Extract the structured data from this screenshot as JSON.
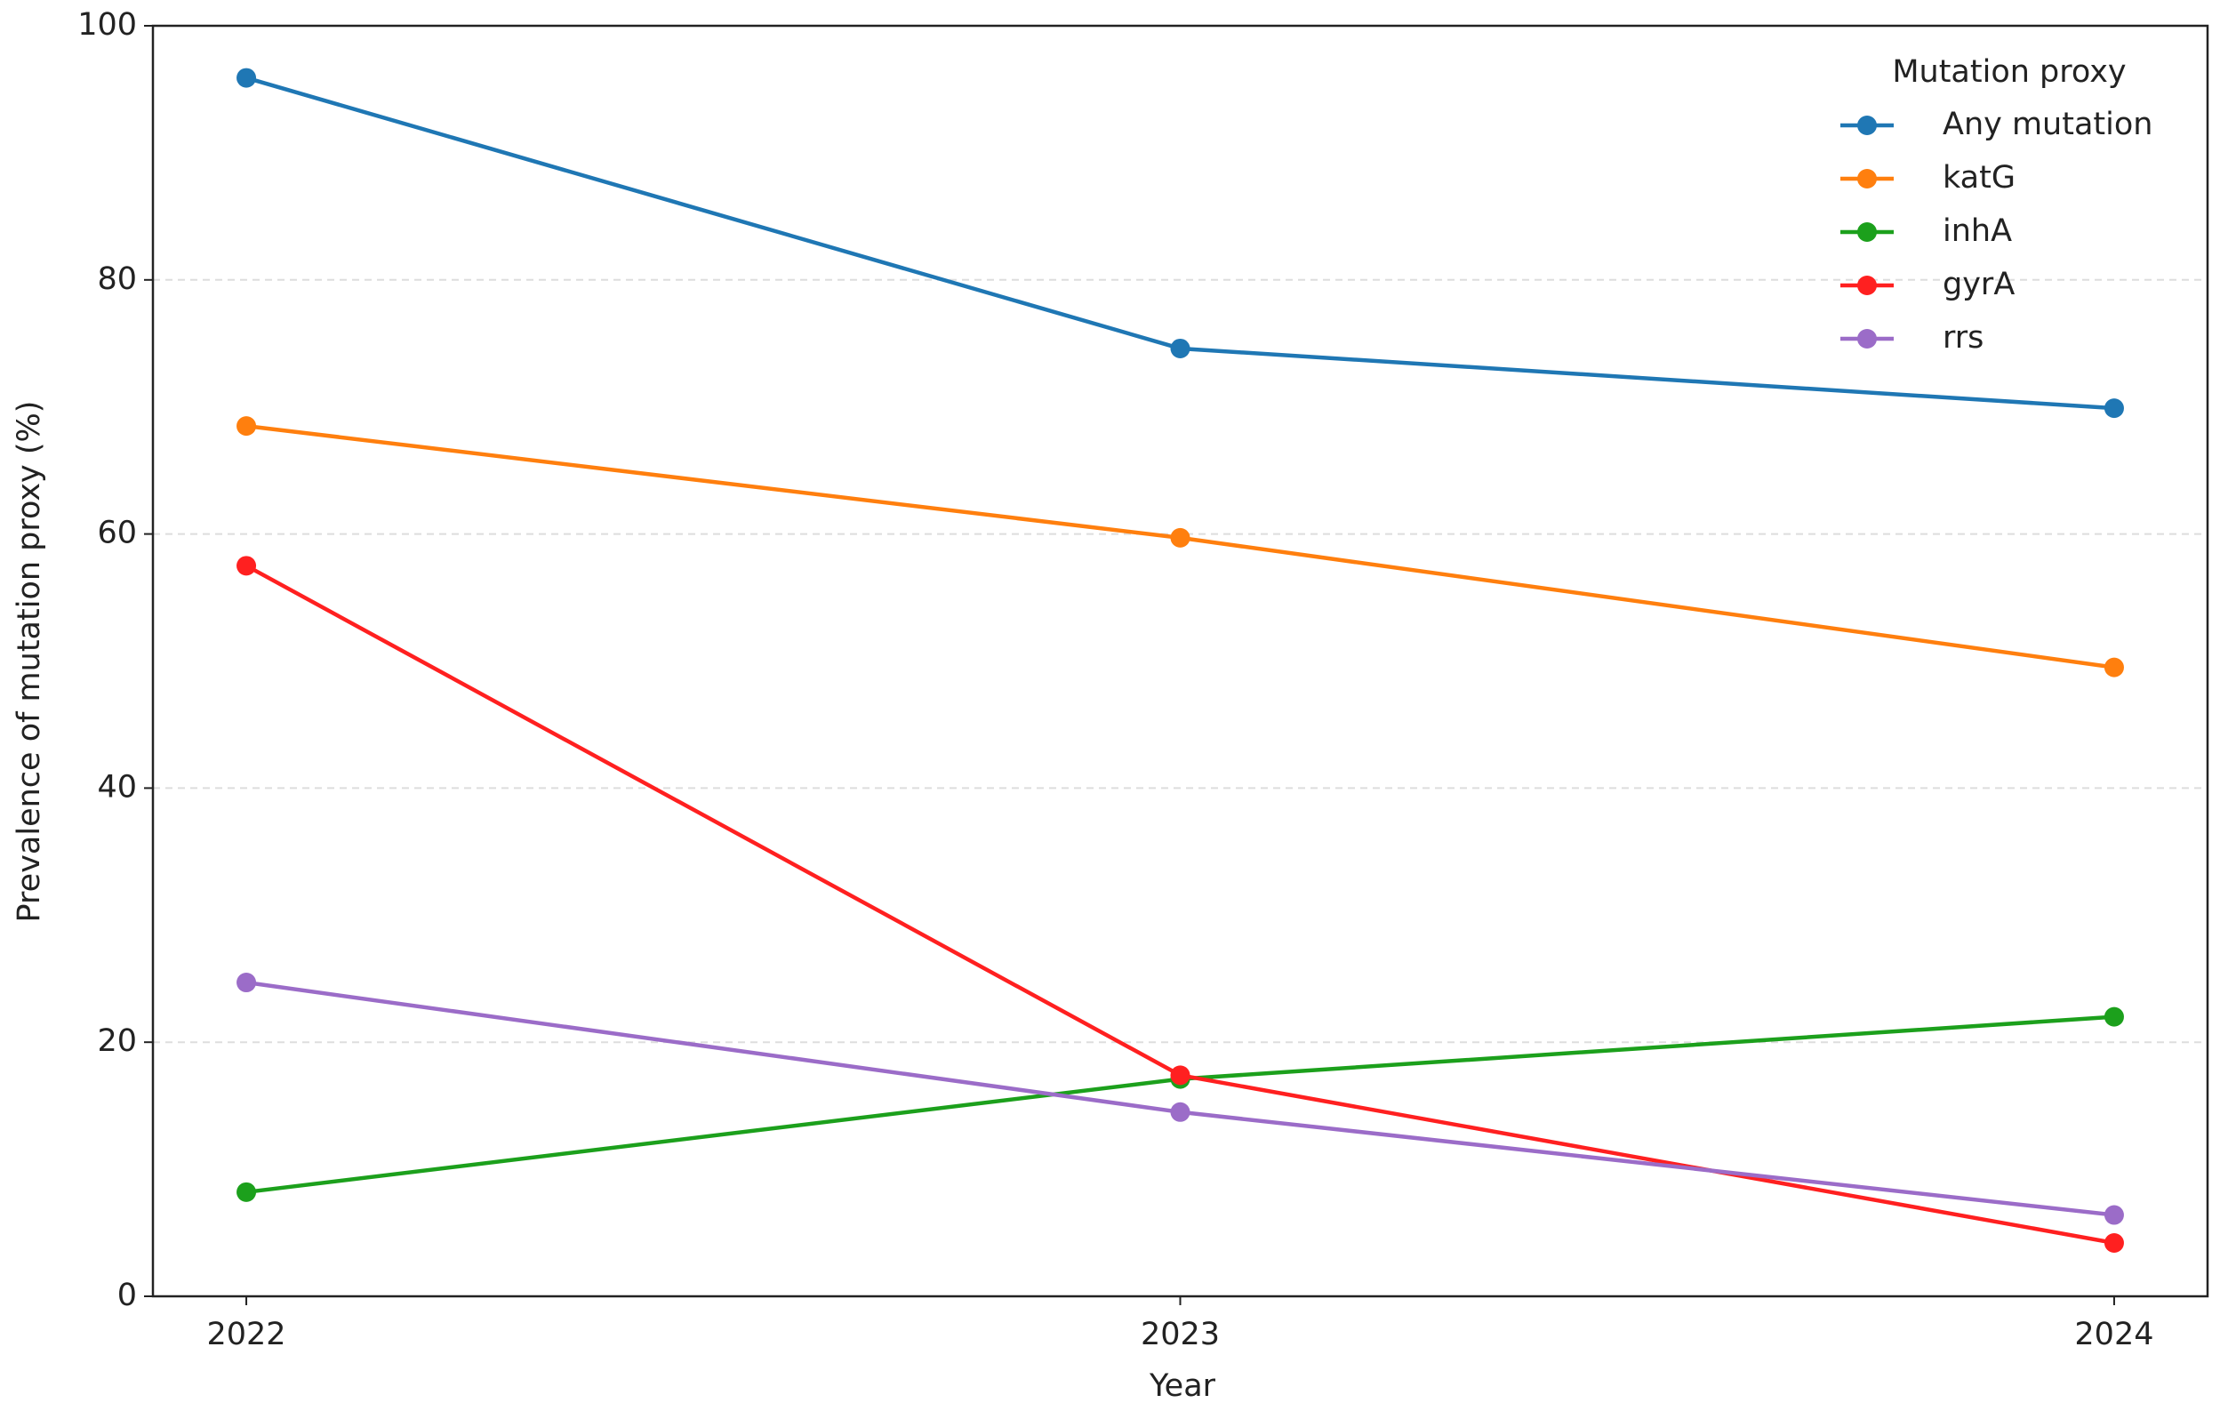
{
  "chart_data": {
    "type": "line",
    "x": [
      2022,
      2023,
      2024
    ],
    "xlim": [
      2021.9,
      2024.1
    ],
    "xticks": [
      2022,
      2023,
      2024
    ],
    "ylim": [
      0,
      100
    ],
    "yticks": [
      0,
      20,
      40,
      60,
      80,
      100
    ],
    "xlabel": "Year",
    "ylabel": "Prevalence of mutation proxy (%)",
    "grid": true,
    "legend_title": "Mutation proxy",
    "legend_position": "upper right",
    "series": [
      {
        "name": "Any mutation",
        "color": "#1f77b4",
        "values": [
          95.9,
          74.6,
          69.9
        ]
      },
      {
        "name": "katG",
        "color": "#ff7f0e",
        "values": [
          68.5,
          59.7,
          49.5
        ]
      },
      {
        "name": "inhA",
        "color": "#1ca01c",
        "values": [
          8.2,
          17.1,
          22.0
        ]
      },
      {
        "name": "gyrA",
        "color": "#ff2020",
        "values": [
          57.5,
          17.4,
          4.2
        ]
      },
      {
        "name": "rrs",
        "color": "#9b6cc8",
        "values": [
          24.7,
          14.5,
          6.4
        ]
      }
    ]
  }
}
